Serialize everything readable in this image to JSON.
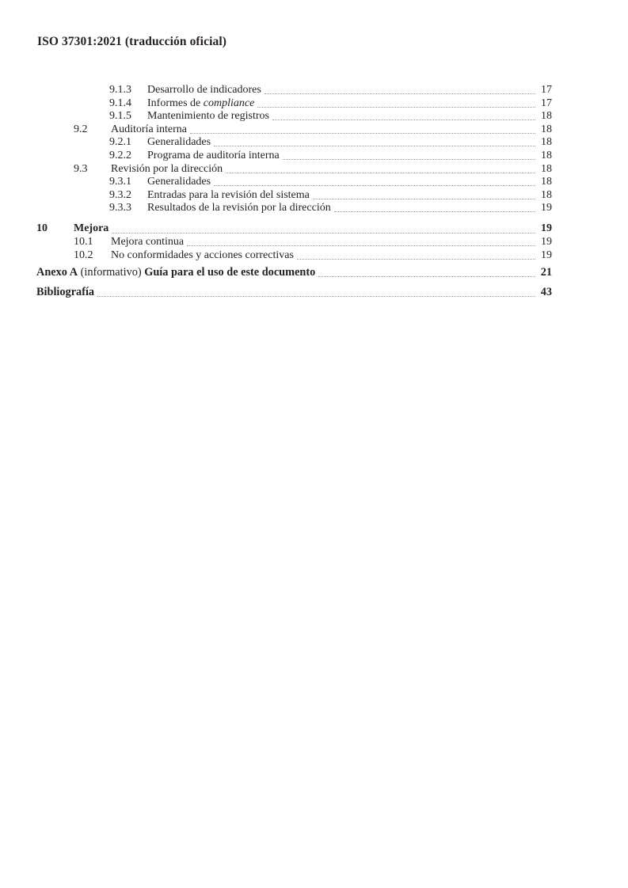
{
  "page": {
    "background_color": "#ffffff",
    "text_color": "#262223",
    "leader_dot_color": "#9a9a9a"
  },
  "header": {
    "title": "ISO 37301:2021 (traducción oficial)"
  },
  "toc": {
    "entries": [
      {
        "level": 3,
        "num": "9.1.3",
        "title": "Desarrollo de indicadores",
        "page": "17"
      },
      {
        "level": 3,
        "num": "9.1.4",
        "title_prefix": "Informes de ",
        "title_italic": "compliance",
        "page": "17"
      },
      {
        "level": 3,
        "num": "9.1.5",
        "title": "Mantenimiento de registros",
        "page": "18"
      },
      {
        "level": 2,
        "num": "9.2",
        "title": "Auditoría interna",
        "page": "18"
      },
      {
        "level": 3,
        "num": "9.2.1",
        "title": "Generalidades",
        "page": "18"
      },
      {
        "level": 3,
        "num": "9.2.2",
        "title": "Programa de auditoría interna",
        "page": "18"
      },
      {
        "level": 2,
        "num": "9.3",
        "title": "Revisión por la dirección",
        "page": "18"
      },
      {
        "level": 3,
        "num": "9.3.1",
        "title": "Generalidades",
        "page": "18"
      },
      {
        "level": 3,
        "num": "9.3.2",
        "title": "Entradas para la revisión del sistema",
        "page": "18"
      },
      {
        "level": 3,
        "num": "9.3.3",
        "title": "Resultados de la revisión por la dirección",
        "page": "19"
      },
      {
        "level": 1,
        "num": "10",
        "title": "Mejora",
        "page": "19",
        "bold": true
      },
      {
        "level": 2,
        "num": "10.1",
        "title": "Mejora continua",
        "page": "19"
      },
      {
        "level": 2,
        "num": "10.2",
        "title": "No conformidades y acciones correctivas",
        "page": "19"
      }
    ],
    "annex": {
      "bold_prefix": "Anexo A",
      "regular": " (informativo) ",
      "bold_title": "Guía para el uso de este documento",
      "page": "21"
    },
    "bibliography": {
      "title": "Bibliografía",
      "page": "43"
    }
  }
}
